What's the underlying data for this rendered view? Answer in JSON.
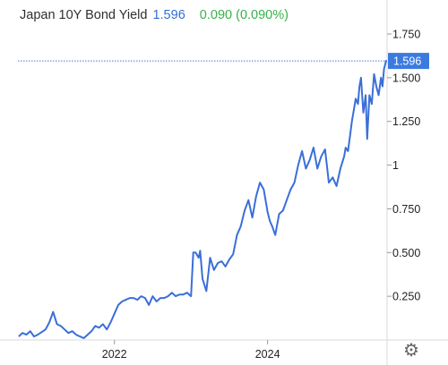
{
  "header": {
    "title": "Japan 10Y Bond Yield",
    "price": "1.596",
    "change": "0.090 (0.090%)"
  },
  "colors": {
    "line": "#3a6fd8",
    "price_label_bg": "#3b7be0",
    "change": "#36b24a"
  },
  "icons": {
    "settings": "gear-icon"
  },
  "chart_data": {
    "type": "line",
    "title": "Japan 10Y Bond Yield",
    "ylim": [
      0,
      1.75
    ],
    "y_ticks": [
      {
        "value": 1.75,
        "label": "1.750"
      },
      {
        "value": 1.5,
        "label": "1.500"
      },
      {
        "value": 1.25,
        "label": "1.250"
      },
      {
        "value": 1.0,
        "label": "1"
      },
      {
        "value": 0.75,
        "label": "0.750"
      },
      {
        "value": 0.5,
        "label": "0.500"
      },
      {
        "value": 0.25,
        "label": "0.250"
      }
    ],
    "xlim": [
      2020.74,
      2025.56
    ],
    "x_ticks": [
      {
        "value": 2022.0,
        "label": "2022"
      },
      {
        "value": 2024.0,
        "label": "2024"
      }
    ],
    "last_value": 1.596,
    "last_value_label": "1.596",
    "grid": false,
    "x": [
      2020.75,
      2020.8,
      2020.85,
      2020.9,
      2020.95,
      2021.0,
      2021.1,
      2021.15,
      2021.2,
      2021.25,
      2021.3,
      2021.35,
      2021.4,
      2021.45,
      2021.5,
      2021.55,
      2021.6,
      2021.65,
      2021.7,
      2021.75,
      2021.8,
      2021.85,
      2021.9,
      2021.95,
      2022.0,
      2022.05,
      2022.1,
      2022.15,
      2022.2,
      2022.25,
      2022.3,
      2022.35,
      2022.4,
      2022.45,
      2022.5,
      2022.55,
      2022.6,
      2022.65,
      2022.7,
      2022.75,
      2022.8,
      2022.85,
      2022.9,
      2022.95,
      2023.0,
      2023.03,
      2023.06,
      2023.1,
      2023.12,
      2023.15,
      2023.2,
      2023.25,
      2023.3,
      2023.35,
      2023.4,
      2023.45,
      2023.5,
      2023.55,
      2023.6,
      2023.65,
      2023.7,
      2023.75,
      2023.8,
      2023.85,
      2023.9,
      2023.95,
      2024.0,
      2024.03,
      2024.06,
      2024.1,
      2024.15,
      2024.2,
      2024.25,
      2024.3,
      2024.35,
      2024.4,
      2024.45,
      2024.5,
      2024.55,
      2024.6,
      2024.65,
      2024.7,
      2024.75,
      2024.8,
      2024.85,
      2024.9,
      2024.95,
      2025.0,
      2025.02,
      2025.05,
      2025.08,
      2025.1,
      2025.12,
      2025.15,
      2025.18,
      2025.2,
      2025.22,
      2025.25,
      2025.28,
      2025.3,
      2025.33,
      2025.36,
      2025.39,
      2025.42,
      2025.45,
      2025.48,
      2025.5,
      2025.52,
      2025.55
    ],
    "y": [
      0.02,
      0.04,
      0.03,
      0.05,
      0.02,
      0.03,
      0.06,
      0.1,
      0.16,
      0.09,
      0.08,
      0.06,
      0.04,
      0.05,
      0.03,
      0.02,
      0.01,
      0.03,
      0.05,
      0.08,
      0.07,
      0.09,
      0.06,
      0.1,
      0.15,
      0.2,
      0.22,
      0.23,
      0.24,
      0.24,
      0.23,
      0.25,
      0.24,
      0.2,
      0.25,
      0.22,
      0.24,
      0.24,
      0.25,
      0.27,
      0.25,
      0.26,
      0.26,
      0.27,
      0.25,
      0.5,
      0.5,
      0.47,
      0.51,
      0.35,
      0.28,
      0.47,
      0.4,
      0.44,
      0.45,
      0.42,
      0.46,
      0.49,
      0.6,
      0.65,
      0.74,
      0.8,
      0.7,
      0.82,
      0.9,
      0.86,
      0.73,
      0.68,
      0.65,
      0.6,
      0.72,
      0.74,
      0.8,
      0.86,
      0.9,
      1.0,
      1.08,
      0.98,
      1.03,
      1.1,
      0.98,
      1.05,
      1.09,
      0.9,
      0.93,
      0.88,
      0.98,
      1.05,
      1.1,
      1.08,
      1.18,
      1.25,
      1.3,
      1.38,
      1.35,
      1.45,
      1.5,
      1.3,
      1.4,
      1.15,
      1.4,
      1.35,
      1.52,
      1.45,
      1.4,
      1.5,
      1.45,
      1.55,
      1.6
    ]
  }
}
